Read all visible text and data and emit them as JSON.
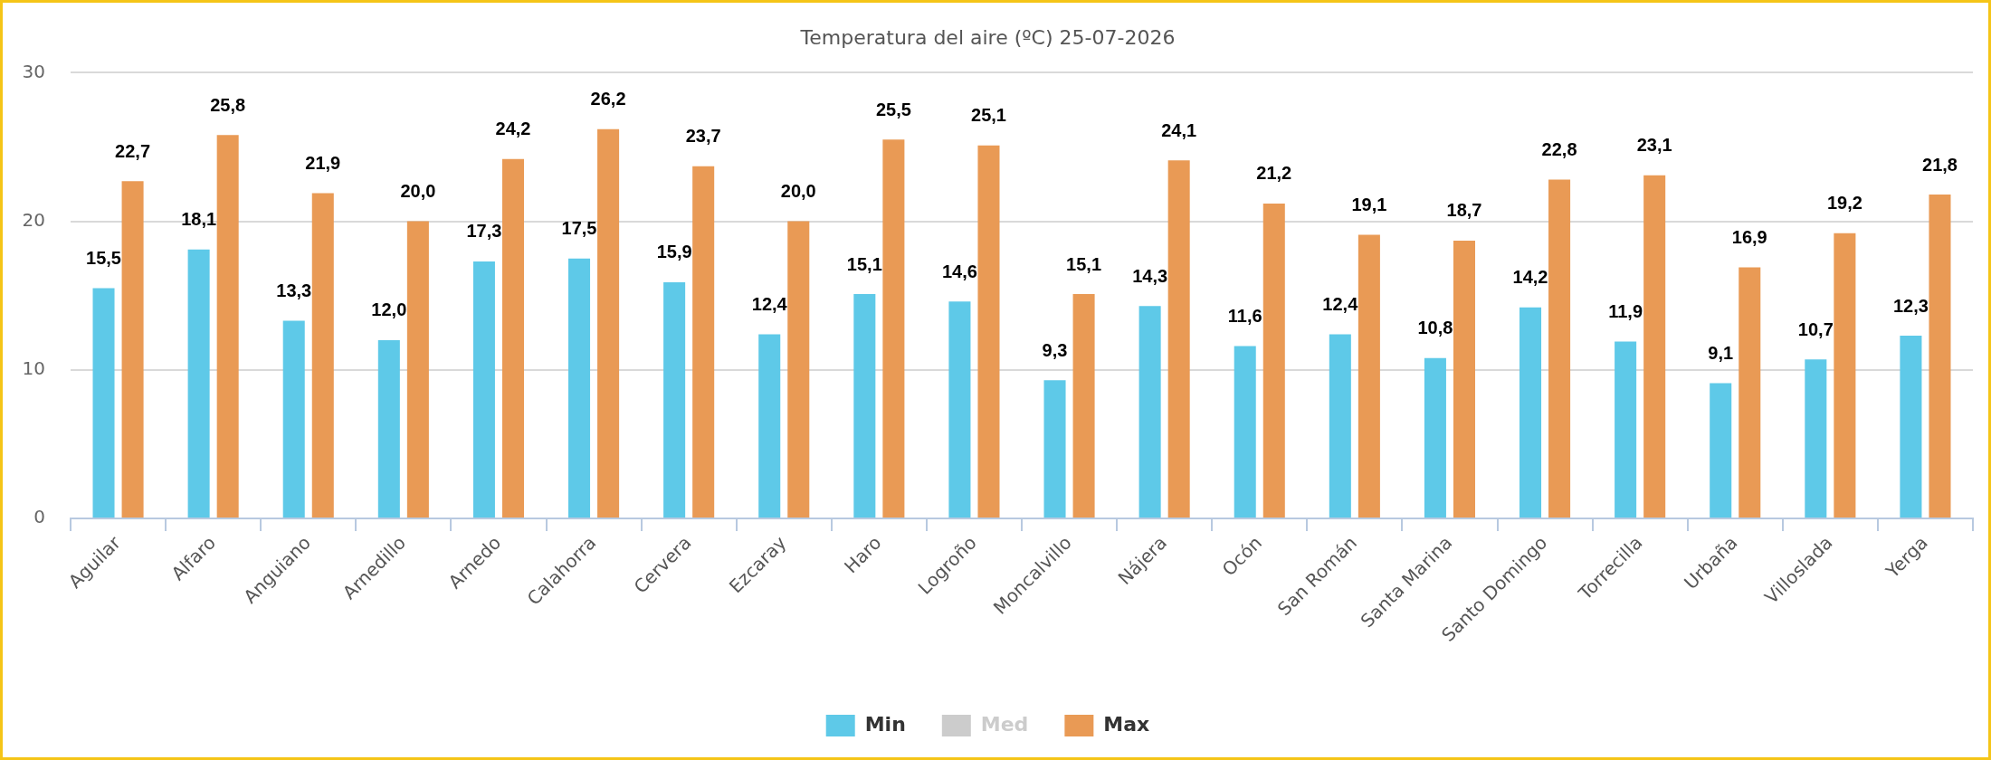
{
  "chart_data": {
    "type": "bar",
    "title": "Temperatura del aire (ºC) 25-07-2026",
    "categories": [
      "Aguilar",
      "Alfaro",
      "Anguiano",
      "Arnedillo",
      "Arnedo",
      "Calahorra",
      "Cervera",
      "Ezcaray",
      "Haro",
      "Logroño",
      "Moncalvillo",
      "Nájera",
      "Ocón",
      "San Román",
      "Santa Marina",
      "Santo Domingo",
      "Torrecilla",
      "Urbaña",
      "Villoslada",
      "Yerga"
    ],
    "series": [
      {
        "name": "Min",
        "color": "#5ec9e8",
        "values": [
          15.5,
          18.1,
          13.3,
          12.0,
          17.3,
          17.5,
          15.9,
          12.4,
          15.1,
          14.6,
          9.3,
          14.3,
          11.6,
          12.4,
          10.8,
          14.2,
          11.9,
          9.1,
          10.7,
          12.3
        ],
        "value_labels": [
          "15,5",
          "18,1",
          "13,3",
          "12,0",
          "17,3",
          "17,5",
          "15,9",
          "12,4",
          "15,1",
          "14,6",
          "9,3",
          "14,3",
          "11,6",
          "12,4",
          "10,8",
          "14,2",
          "11,9",
          "9,1",
          "10,7",
          "12,3"
        ]
      },
      {
        "name": "Med",
        "color": "#cccccc",
        "values": [
          null,
          null,
          null,
          null,
          null,
          null,
          null,
          null,
          null,
          null,
          null,
          null,
          null,
          null,
          null,
          null,
          null,
          null,
          null,
          null
        ]
      },
      {
        "name": "Max",
        "color": "#e99a55",
        "values": [
          22.7,
          25.8,
          21.9,
          20.0,
          24.2,
          26.2,
          23.7,
          20.0,
          25.5,
          25.1,
          15.1,
          24.1,
          21.2,
          19.1,
          18.7,
          22.8,
          23.1,
          16.9,
          19.2,
          21.8
        ],
        "value_labels": [
          "22,7",
          "25,8",
          "21,9",
          "20,0",
          "24,2",
          "26,2",
          "23,7",
          "20,0",
          "25,5",
          "25,1",
          "15,1",
          "24,1",
          "21,2",
          "19,1",
          "18,7",
          "22,8",
          "23,1",
          "16,9",
          "19,2",
          "21,8"
        ]
      }
    ],
    "ylim": [
      0,
      30
    ],
    "yticks": [
      0,
      10,
      20,
      30
    ],
    "grid": "y",
    "legend": "bottom"
  }
}
